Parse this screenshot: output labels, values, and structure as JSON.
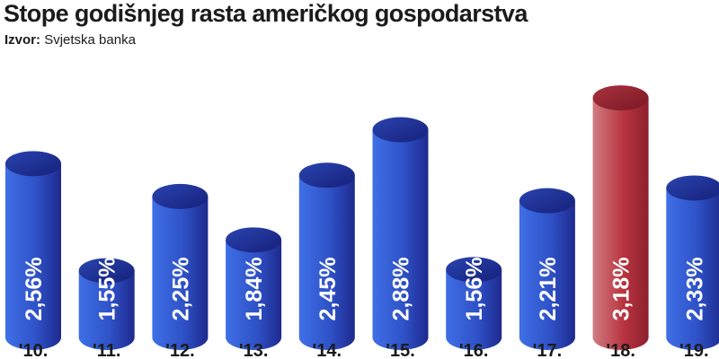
{
  "header": {
    "title": "Stope godišnjeg rasta američkog gospodarstva",
    "source_label": "Izvor:",
    "source_value": "Svjetska banka"
  },
  "chart_data": {
    "type": "bar",
    "title": "Stope godišnjeg rasta američkog gospodarstva",
    "categories": [
      "'10.",
      "'11.",
      "'12.",
      "'13.",
      "'14.",
      "'15.",
      "'16.",
      "'17.",
      "'18.",
      "'19."
    ],
    "values": [
      2.56,
      1.55,
      2.25,
      1.84,
      2.45,
      2.88,
      1.56,
      2.21,
      3.18,
      2.33
    ],
    "value_labels": [
      "2,56%",
      "1,55%",
      "2,25%",
      "1,84%",
      "2,45%",
      "2,88%",
      "1,56%",
      "2,21%",
      "3,18%",
      "2,33%"
    ],
    "highlight_index": 8,
    "colors": {
      "bar_dark": "#1e2a8e",
      "bar_mid": "#2f52c8",
      "bar_light": "#3f6fe6",
      "highlight_dark": "#8e1f2e",
      "highlight_mid": "#b8343f",
      "highlight_light": "#d07c82"
    },
    "grid": false,
    "legend": "none"
  }
}
